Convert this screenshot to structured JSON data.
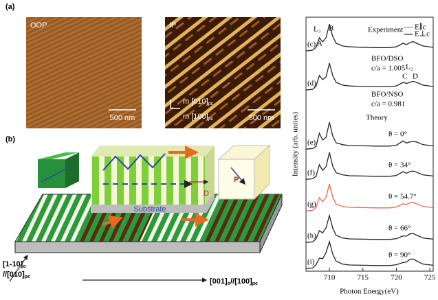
{
  "panel_a": {
    "label": "(a)",
    "images": [
      {
        "label": "OOP",
        "scale": "500 nm"
      },
      {
        "label": "IP",
        "scale": "500 nm",
        "axis_1": "m [010]",
        "axis_1_sub": "pc",
        "axis_2": "m [100]",
        "axis_2_sub": "pc"
      }
    ]
  },
  "panel_b": {
    "label": "(b)",
    "substrate": "Substrate",
    "d_label": "D",
    "p_label": "P",
    "vertical_axis": {
      "line_1": "[1-10]",
      "line_1_sub": "o",
      "line_2": "//[010]",
      "line_2_sub": "pc"
    },
    "horizontal_axis": {
      "part_1": "[001]",
      "part_1_sub": "o",
      "part_2": "//[100]",
      "part_2_sub": "pc"
    }
  },
  "chart_data": {
    "type": "line",
    "xlabel": "Photon Energy(eV)",
    "ylabel": "Intensity (arb. unites)",
    "x": [
      706.5,
      707.5,
      708,
      708.5,
      709,
      709.5,
      710,
      710.5,
      711,
      712,
      713,
      715,
      717,
      719,
      720,
      721,
      721.5,
      722,
      722.5,
      723,
      724,
      725.5
    ],
    "xlim": [
      706.5,
      725.5
    ],
    "xticks": [
      710,
      715,
      720,
      725
    ],
    "legend": [
      {
        "name": "E∥c",
        "color": "#e8664a"
      },
      {
        "name": "E⊥c",
        "color": "#222222"
      }
    ],
    "series": [
      {
        "name": "(c)",
        "color": "#222222",
        "values": [
          0.02,
          0.05,
          0.15,
          0.5,
          0.35,
          0.5,
          1.0,
          0.55,
          0.3,
          0.2,
          0.17,
          0.15,
          0.14,
          0.14,
          0.17,
          0.3,
          0.25,
          0.32,
          0.36,
          0.3,
          0.2,
          0.15
        ]
      },
      {
        "name": "(d)",
        "color": "#222222",
        "values": [
          0.02,
          0.05,
          0.16,
          0.55,
          0.4,
          0.5,
          1.0,
          0.55,
          0.3,
          0.2,
          0.17,
          0.15,
          0.14,
          0.14,
          0.17,
          0.3,
          0.26,
          0.3,
          0.34,
          0.3,
          0.2,
          0.15
        ]
      },
      {
        "name": "(e)",
        "color": "#222222",
        "values": [
          0.02,
          0.04,
          0.12,
          0.6,
          0.35,
          0.45,
          1.0,
          0.5,
          0.25,
          0.18,
          0.15,
          0.14,
          0.13,
          0.13,
          0.16,
          0.32,
          0.24,
          0.28,
          0.3,
          0.28,
          0.18,
          0.14
        ]
      },
      {
        "name": "(f)",
        "color": "#222222",
        "values": [
          0.02,
          0.04,
          0.13,
          0.55,
          0.35,
          0.48,
          1.0,
          0.5,
          0.26,
          0.18,
          0.15,
          0.14,
          0.13,
          0.13,
          0.16,
          0.3,
          0.24,
          0.3,
          0.32,
          0.28,
          0.18,
          0.14
        ]
      },
      {
        "name": "(g)",
        "color": "#e8664a",
        "values": [
          0.02,
          0.04,
          0.14,
          0.5,
          0.36,
          0.52,
          1.0,
          0.52,
          0.27,
          0.18,
          0.15,
          0.14,
          0.13,
          0.13,
          0.16,
          0.28,
          0.25,
          0.31,
          0.33,
          0.28,
          0.18,
          0.14
        ]
      },
      {
        "name": "(h)",
        "color": "#222222",
        "values": [
          0.02,
          0.04,
          0.15,
          0.45,
          0.37,
          0.56,
          1.0,
          0.54,
          0.28,
          0.18,
          0.15,
          0.14,
          0.13,
          0.13,
          0.16,
          0.26,
          0.25,
          0.33,
          0.35,
          0.29,
          0.18,
          0.14
        ]
      },
      {
        "name": "(i)",
        "color": "#222222",
        "values": [
          0.02,
          0.04,
          0.16,
          0.4,
          0.38,
          0.6,
          1.0,
          0.55,
          0.29,
          0.18,
          0.15,
          0.14,
          0.13,
          0.13,
          0.16,
          0.24,
          0.26,
          0.35,
          0.37,
          0.3,
          0.18,
          0.14
        ]
      }
    ],
    "annotations": [
      "Experiment",
      "L₃",
      "B",
      "A",
      "L₂",
      "C",
      "D",
      "BFO/DSO",
      "c/a = 1.005",
      "BFO/NSO",
      "c/a = 0.981",
      "Theory",
      "θ = 0°",
      "θ = 34°",
      "θ = 54.7°",
      "θ = 66°",
      "θ = 90°"
    ]
  }
}
